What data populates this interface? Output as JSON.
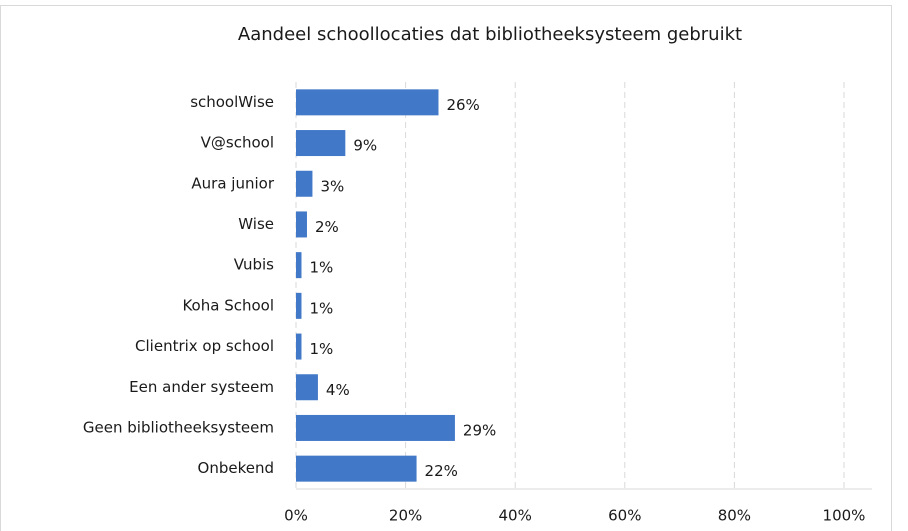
{
  "chart_data": {
    "type": "bar",
    "orientation": "horizontal",
    "title": "Aandeel schoollocaties dat bibliotheeksysteem gebruikt",
    "categories": [
      "schoolWise",
      "V@school",
      "Aura junior",
      "Wise",
      "Vubis",
      "Koha School",
      "Clientrix op school",
      "Een ander systeem",
      "Geen bibliotheeksysteem",
      "Onbekend"
    ],
    "values": [
      26,
      9,
      3,
      2,
      1,
      1,
      1,
      4,
      29,
      22
    ],
    "value_labels": [
      "26%",
      "9%",
      "3%",
      "2%",
      "1%",
      "1%",
      "1%",
      "4%",
      "29%",
      "22%"
    ],
    "color": "#4178c8",
    "xlim": [
      0,
      100
    ],
    "xticks": [
      {
        "value": 0,
        "label": "0%"
      },
      {
        "value": 20,
        "label": "20%"
      },
      {
        "value": 40,
        "label": "40%"
      },
      {
        "value": 60,
        "label": "60%"
      },
      {
        "value": 80,
        "label": "80%"
      },
      {
        "value": 100,
        "label": "100%"
      }
    ],
    "grid": true
  }
}
